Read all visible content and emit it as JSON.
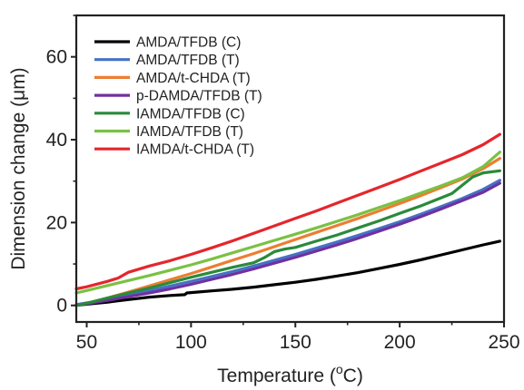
{
  "chart_data": {
    "type": "line",
    "xlabel_prefix": "Temperature (",
    "xlabel_sup": "o",
    "xlabel_suffix": "C)",
    "ylabel": "Dimension change (μm)",
    "xlim": [
      45,
      250
    ],
    "ylim": [
      -4,
      70
    ],
    "x_ticks": [
      50,
      100,
      150,
      200,
      250
    ],
    "y_ticks": [
      0,
      20,
      40,
      60
    ],
    "grid": false,
    "legend_position": "top-left",
    "series": [
      {
        "name": "AMDA/TFDB (C)",
        "color": "#000000",
        "x": [
          45,
          50,
          60,
          70,
          80,
          90,
          97,
          98,
          100,
          110,
          120,
          130,
          140,
          150,
          160,
          170,
          180,
          190,
          200,
          210,
          220,
          230,
          240,
          248
        ],
        "y": [
          0.0,
          0.3,
          0.8,
          1.4,
          2.0,
          2.4,
          2.6,
          3.0,
          3.1,
          3.5,
          3.9,
          4.4,
          5.0,
          5.6,
          6.3,
          7.1,
          7.9,
          8.9,
          9.9,
          11.0,
          12.2,
          13.4,
          14.6,
          15.5
        ]
      },
      {
        "name": "AMDA/TFDB (T)",
        "color": "#4472c4",
        "x": [
          45,
          50,
          60,
          70,
          80,
          90,
          100,
          110,
          120,
          130,
          140,
          150,
          160,
          170,
          180,
          190,
          200,
          210,
          220,
          230,
          240,
          248
        ],
        "y": [
          0.2,
          0.6,
          1.5,
          2.5,
          3.6,
          4.7,
          5.8,
          7.0,
          8.2,
          9.5,
          10.9,
          12.3,
          13.8,
          15.3,
          16.9,
          18.5,
          20.2,
          22.0,
          23.9,
          25.8,
          28.0,
          30.2
        ]
      },
      {
        "name": "AMDA/t-CHDA (T)",
        "color": "#ed7d31",
        "x": [
          45,
          50,
          60,
          70,
          80,
          90,
          100,
          110,
          120,
          130,
          140,
          150,
          160,
          170,
          180,
          190,
          200,
          210,
          220,
          230,
          240,
          248
        ],
        "y": [
          0.0,
          0.5,
          1.8,
          3.2,
          4.7,
          6.2,
          7.7,
          9.3,
          10.9,
          12.5,
          14.2,
          15.9,
          17.6,
          19.3,
          21.0,
          22.8,
          24.6,
          26.5,
          28.5,
          30.5,
          33.0,
          35.5
        ]
      },
      {
        "name": "p-DAMDA/TFDB (T)",
        "color": "#7030a0",
        "x": [
          45,
          50,
          60,
          70,
          80,
          90,
          100,
          110,
          120,
          130,
          140,
          150,
          160,
          170,
          180,
          190,
          200,
          210,
          220,
          230,
          240,
          248
        ],
        "y": [
          0.0,
          0.4,
          1.2,
          2.1,
          3.0,
          4.0,
          5.1,
          6.3,
          7.5,
          8.8,
          10.2,
          11.6,
          13.1,
          14.6,
          16.2,
          17.9,
          19.6,
          21.4,
          23.3,
          25.3,
          27.3,
          29.5
        ]
      },
      {
        "name": "IAMDA/TFDB (C)",
        "color": "#2a8a3a",
        "x": [
          45,
          50,
          60,
          70,
          80,
          90,
          100,
          110,
          120,
          130,
          135,
          140,
          145,
          150,
          160,
          170,
          180,
          190,
          200,
          210,
          220,
          225,
          230,
          235,
          240,
          248
        ],
        "y": [
          0.0,
          0.5,
          1.8,
          3.0,
          4.2,
          5.5,
          6.8,
          8.0,
          9.2,
          10.3,
          11.5,
          13.0,
          13.6,
          14.0,
          15.5,
          17.0,
          18.7,
          20.4,
          22.2,
          24.0,
          26.0,
          27.0,
          29.0,
          31.0,
          32.0,
          32.5
        ]
      },
      {
        "name": "IAMDA/TFDB (T)",
        "color": "#7ac143",
        "x": [
          45,
          50,
          60,
          70,
          80,
          90,
          100,
          110,
          120,
          130,
          140,
          150,
          160,
          170,
          180,
          190,
          200,
          210,
          220,
          230,
          240,
          248
        ],
        "y": [
          3.0,
          3.6,
          4.8,
          6.0,
          7.2,
          8.5,
          9.8,
          11.2,
          12.7,
          14.2,
          15.7,
          17.2,
          18.7,
          20.3,
          21.9,
          23.6,
          25.3,
          27.1,
          28.9,
          30.8,
          33.5,
          37.0
        ]
      },
      {
        "name": "IAMDA/t-CHDA (T)",
        "color": "#e4262c",
        "x": [
          45,
          50,
          60,
          65,
          70,
          80,
          90,
          100,
          110,
          120,
          130,
          140,
          150,
          160,
          170,
          180,
          190,
          200,
          210,
          220,
          230,
          240,
          248
        ],
        "y": [
          4.0,
          4.5,
          5.8,
          6.6,
          8.0,
          9.5,
          10.8,
          12.3,
          13.9,
          15.6,
          17.4,
          19.2,
          21.0,
          22.8,
          24.7,
          26.6,
          28.5,
          30.4,
          32.4,
          34.4,
          36.4,
          38.8,
          41.3
        ]
      }
    ]
  }
}
